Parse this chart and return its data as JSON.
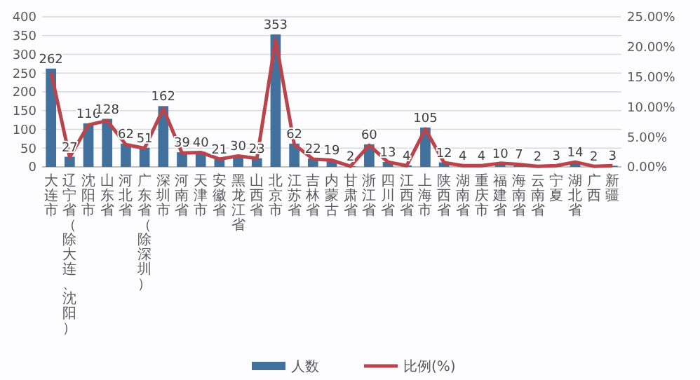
{
  "chart_data": {
    "type": "bar",
    "categories": [
      "大连市",
      "辽宁省（除大连、沈阳）",
      "沈阳市",
      "山东省",
      "河北省",
      "广东省（除深圳）",
      "深圳市",
      "河南省",
      "天津市",
      "安徽省",
      "黑龙江省",
      "山西省",
      "北京市",
      "江苏省",
      "吉林省",
      "内蒙古",
      "甘肃省",
      "浙江省",
      "四川省",
      "江西省",
      "上海市",
      "陕西省",
      "湖南省",
      "重庆市",
      "福建省",
      "海南省",
      "云南省",
      "宁夏",
      "湖北省",
      "广西",
      "新疆"
    ],
    "series": [
      {
        "name": "人数",
        "color": "#41719c",
        "values": [
          262,
          27,
          116,
          128,
          62,
          51,
          162,
          39,
          40,
          21,
          30,
          23,
          353,
          62,
          22,
          19,
          2,
          60,
          13,
          4,
          105,
          12,
          4,
          4,
          10,
          7,
          2,
          3,
          14,
          2,
          3
        ],
        "value_labels": [
          "262",
          "27",
          "116",
          "128",
          "62",
          "51",
          "162",
          "39",
          "40",
          "21",
          "30",
          "23",
          "353",
          "62",
          "22",
          "19",
          "2",
          "60",
          "13",
          "4",
          "105",
          "12",
          "4",
          "4",
          "10",
          "7",
          "2",
          "3",
          "14",
          "2",
          "3"
        ]
      },
      {
        "name": "比例(%)",
        "type": "line",
        "axis": "y2",
        "color": "#b8454b",
        "values": [
          15.8,
          1.6,
          7.0,
          7.7,
          3.7,
          3.1,
          9.7,
          2.3,
          2.4,
          1.3,
          1.8,
          1.4,
          21.2,
          3.7,
          1.3,
          1.1,
          0.1,
          3.6,
          0.8,
          0.2,
          6.3,
          0.7,
          0.2,
          0.2,
          0.6,
          0.4,
          0.1,
          0.2,
          0.8,
          0.1,
          0.2
        ]
      }
    ],
    "ylim": [
      0,
      400
    ],
    "yticks": [
      0,
      50,
      100,
      150,
      200,
      250,
      300,
      350,
      400
    ],
    "y2lim": [
      0,
      25
    ],
    "y2ticks": [
      {
        "value": 0,
        "label": "0.00%"
      },
      {
        "value": 5,
        "label": "5.00%"
      },
      {
        "value": 10,
        "label": "10.00%"
      },
      {
        "value": 15,
        "label": "15.00%"
      },
      {
        "value": 20,
        "label": "20.00%"
      },
      {
        "value": 25,
        "label": "25.00%"
      }
    ],
    "grid": "y",
    "legend": "bottom",
    "line_style": "solid",
    "marker": "none"
  }
}
